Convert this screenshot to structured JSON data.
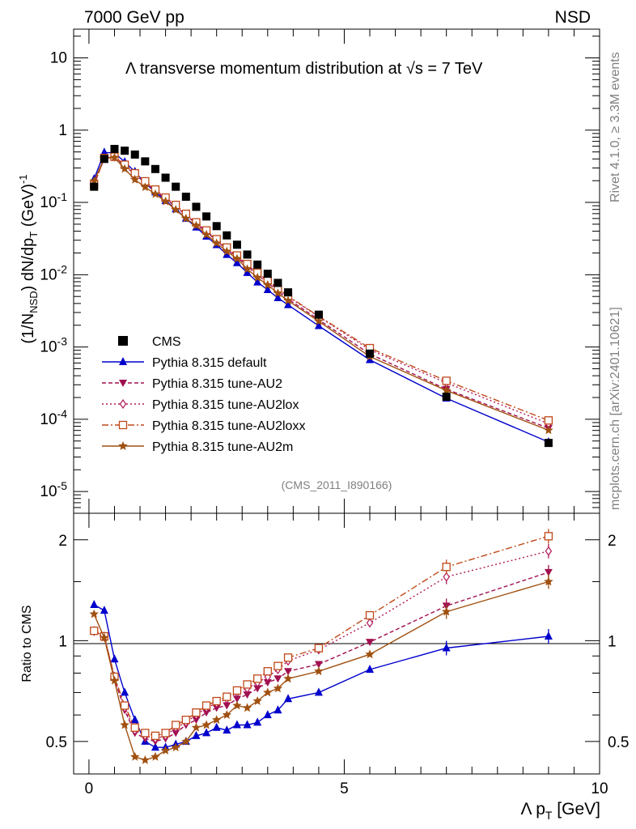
{
  "header": {
    "left": "7000 GeV pp",
    "right": "NSD",
    "title": "Λ transverse momentum distribution at √s = 7 TeV",
    "analysis": "(CMS_2011_I890166)",
    "side_top": "Rivet 4.1.0, ≥ 3.3M events",
    "side_bottom": "mcplots.cern.ch [arXiv:2401.10621]"
  },
  "axes": {
    "ylabel_main": "(1/N_NSD) dN/dp_T (GeV)^-1",
    "ylabel_ratio": "Ratio to CMS",
    "xlabel": "Λ p_T [GeV]",
    "ratio_right_ticks": [
      "2",
      "1",
      "0.5"
    ]
  },
  "chart_data": {
    "type": "line",
    "xlim": [
      -0.3,
      10
    ],
    "main": {
      "yscale": "log",
      "ylim": [
        5e-06,
        25
      ],
      "y_ticks": [
        {
          "value": 10,
          "base": "10",
          "exp": ""
        },
        {
          "value": 1,
          "base": "1",
          "exp": ""
        },
        {
          "value": 0.1,
          "base": "10",
          "exp": "-1"
        },
        {
          "value": 0.01,
          "base": "10",
          "exp": "-2"
        },
        {
          "value": 0.001,
          "base": "10",
          "exp": "-3"
        },
        {
          "value": 0.0001,
          "base": "10",
          "exp": "-4"
        },
        {
          "value": 1e-05,
          "base": "10",
          "exp": "-5"
        }
      ]
    },
    "ratio": {
      "yscale": "log",
      "ylim": [
        0.4,
        2.4
      ],
      "y_ticks": [
        0.5,
        1,
        2
      ],
      "y_tick_labels": [
        "0.5",
        "1",
        "2"
      ]
    },
    "x_ticks": [
      0,
      5,
      10
    ],
    "x_tick_labels": [
      "0",
      "5",
      "10"
    ],
    "x": [
      0.1,
      0.3,
      0.5,
      0.7,
      0.9,
      1.1,
      1.3,
      1.5,
      1.7,
      1.9,
      2.1,
      2.3,
      2.5,
      2.7,
      2.9,
      3.1,
      3.3,
      3.5,
      3.7,
      3.9,
      4.5,
      5.5,
      7.0,
      9.0
    ],
    "cms": [
      0.165,
      0.4,
      0.55,
      0.52,
      0.46,
      0.37,
      0.29,
      0.22,
      0.165,
      0.12,
      0.087,
      0.064,
      0.047,
      0.035,
      0.026,
      0.019,
      0.0138,
      0.0103,
      0.0077,
      0.0057,
      0.0028,
      0.00081,
      0.000205,
      4.7e-05
    ],
    "legend": [
      {
        "label": "CMS",
        "marker": "square",
        "color": "#000000",
        "dash": ""
      },
      {
        "label": "Pythia 8.315 default",
        "marker": "triangle-up",
        "color": "#0000cc",
        "dash": ""
      },
      {
        "label": "Pythia 8.315 tune-AU2",
        "marker": "triangle-down",
        "color": "#a01050",
        "dash": "5,3"
      },
      {
        "label": "Pythia 8.315 tune-AU2lox",
        "marker": "diamond-open",
        "color": "#b01858",
        "dash": "2,3"
      },
      {
        "label": "Pythia 8.315 tune-AU2loxx",
        "marker": "square-open",
        "color": "#c04818",
        "dash": "8,3,2,3"
      },
      {
        "label": "Pythia 8.315 tune-AU2m",
        "marker": "star",
        "color": "#a05010",
        "dash": ""
      }
    ],
    "series": [
      {
        "name": "Pythia 8.315 default",
        "ratio": [
          1.28,
          1.23,
          0.88,
          0.7,
          0.58,
          0.5,
          0.48,
          0.48,
          0.49,
          0.5,
          0.52,
          0.53,
          0.55,
          0.54,
          0.56,
          0.56,
          0.57,
          0.6,
          0.62,
          0.67,
          0.7,
          0.82,
          0.95,
          1.03
        ]
      },
      {
        "name": "Pythia 8.315 tune-AU2",
        "ratio": [
          1.06,
          1.02,
          0.77,
          0.62,
          0.53,
          0.51,
          0.5,
          0.51,
          0.53,
          0.56,
          0.58,
          0.61,
          0.63,
          0.64,
          0.67,
          0.69,
          0.72,
          0.75,
          0.77,
          0.81,
          0.85,
          0.99,
          1.27,
          1.6
        ]
      },
      {
        "name": "Pythia 8.315 tune-AU2lox",
        "ratio": [
          1.07,
          1.03,
          0.78,
          0.63,
          0.54,
          0.52,
          0.51,
          0.52,
          0.55,
          0.57,
          0.6,
          0.63,
          0.65,
          0.67,
          0.7,
          0.72,
          0.75,
          0.78,
          0.82,
          0.87,
          0.94,
          1.13,
          1.55,
          1.85
        ]
      },
      {
        "name": "Pythia 8.315 tune-AU2loxx",
        "ratio": [
          1.07,
          1.03,
          0.78,
          0.64,
          0.55,
          0.53,
          0.52,
          0.53,
          0.56,
          0.58,
          0.61,
          0.64,
          0.66,
          0.68,
          0.71,
          0.74,
          0.77,
          0.81,
          0.84,
          0.89,
          0.95,
          1.19,
          1.66,
          2.05
        ]
      },
      {
        "name": "Pythia 8.315 tune-AU2m",
        "ratio": [
          1.2,
          1.02,
          0.76,
          0.56,
          0.45,
          0.44,
          0.45,
          0.47,
          0.48,
          0.5,
          0.55,
          0.56,
          0.58,
          0.6,
          0.64,
          0.63,
          0.66,
          0.7,
          0.72,
          0.77,
          0.81,
          0.91,
          1.22,
          1.5
        ]
      }
    ]
  }
}
